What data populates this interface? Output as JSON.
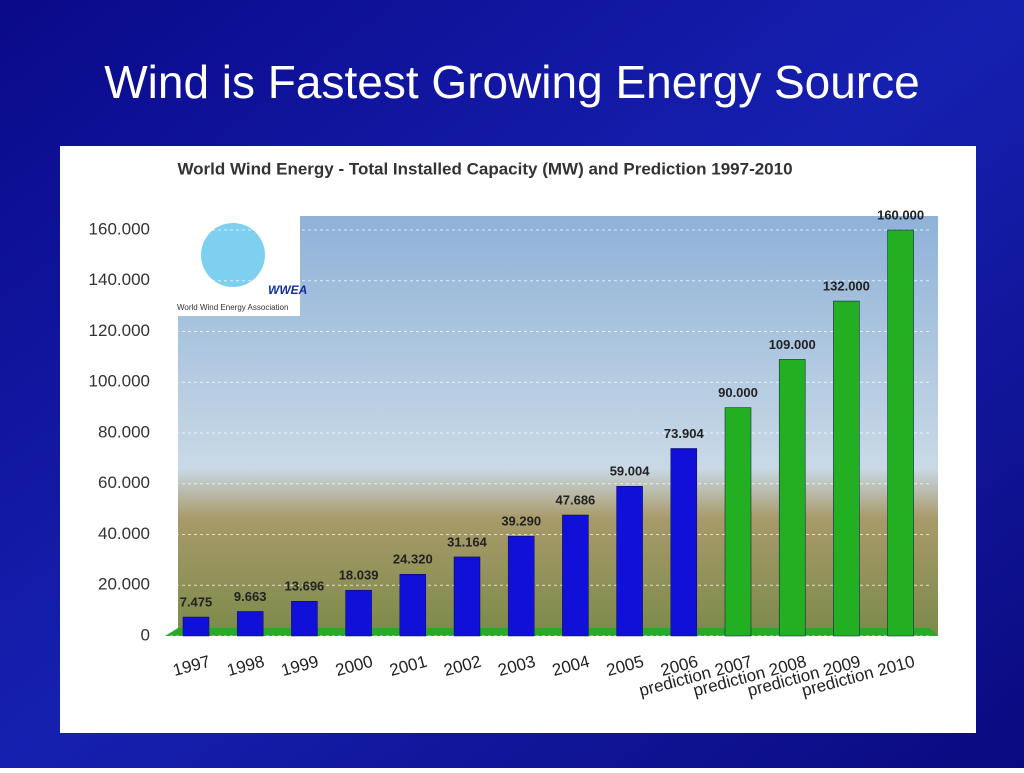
{
  "slide_title": "Wind is Fastest Growing Energy Source",
  "logo": {
    "name": "WWEA",
    "caption": "World Wind Energy Association"
  },
  "chart_data": {
    "type": "bar",
    "title": "World Wind Energy - Total Installed Capacity (MW) and Prediction 1997-2010",
    "categories": [
      "1997",
      "1998",
      "1999",
      "2000",
      "2001",
      "2002",
      "2003",
      "2004",
      "2005",
      "2006",
      "prediction 2007",
      "prediction 2008",
      "prediction 2009",
      "prediction 2010"
    ],
    "values": [
      7475,
      9663,
      13696,
      18039,
      24320,
      31164,
      39290,
      47686,
      59004,
      73904,
      90000,
      109000,
      132000,
      160000
    ],
    "value_labels": [
      "7.475",
      "9.663",
      "13.696",
      "18.039",
      "24.320",
      "31.164",
      "39.290",
      "47.686",
      "59.004",
      "73.904",
      "90.000",
      "109.000",
      "132.000",
      "160.000"
    ],
    "colors": [
      "#1010d8",
      "#1010d8",
      "#1010d8",
      "#1010d8",
      "#1010d8",
      "#1010d8",
      "#1010d8",
      "#1010d8",
      "#1010d8",
      "#1010d8",
      "#22b022",
      "#22b022",
      "#22b022",
      "#22b022"
    ],
    "ylim": [
      0,
      160000
    ],
    "yticks": [
      0,
      {
        "value": 20000,
        "label": "20.000"
      },
      {
        "value": 40000,
        "label": "40.000"
      },
      {
        "value": 60000,
        "label": "60.000"
      },
      {
        "value": 80000,
        "label": "80.000"
      },
      {
        "value": 100000,
        "label": "100.000"
      },
      {
        "value": 120000,
        "label": "120.000"
      },
      {
        "value": 140000,
        "label": "140.000"
      },
      {
        "value": 160000,
        "label": "160.000"
      }
    ],
    "grid": true
  }
}
